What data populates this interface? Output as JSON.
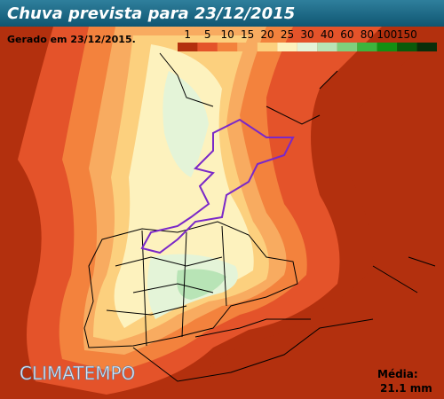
{
  "header": {
    "title": "Chuva prevista para 23/12/2015",
    "generated": "Gerado em 23/12/2015."
  },
  "legend": {
    "labels": [
      "1",
      "5",
      "10",
      "15",
      "20",
      "25",
      "30",
      "40",
      "60",
      "80",
      "100",
      "150"
    ],
    "colors": [
      "#b3300e",
      "#e4532a",
      "#f3823d",
      "#f8ab60",
      "#fcd07e",
      "#fdf2be",
      "#e4f4d8",
      "#b8e4b6",
      "#7fd07d",
      "#3db43d",
      "#128f12",
      "#0a5a0a",
      "#0a2e0a"
    ]
  },
  "brand": "CLIMATEMPO",
  "summary": {
    "label": "Média:",
    "value": "21.1 mm"
  }
}
